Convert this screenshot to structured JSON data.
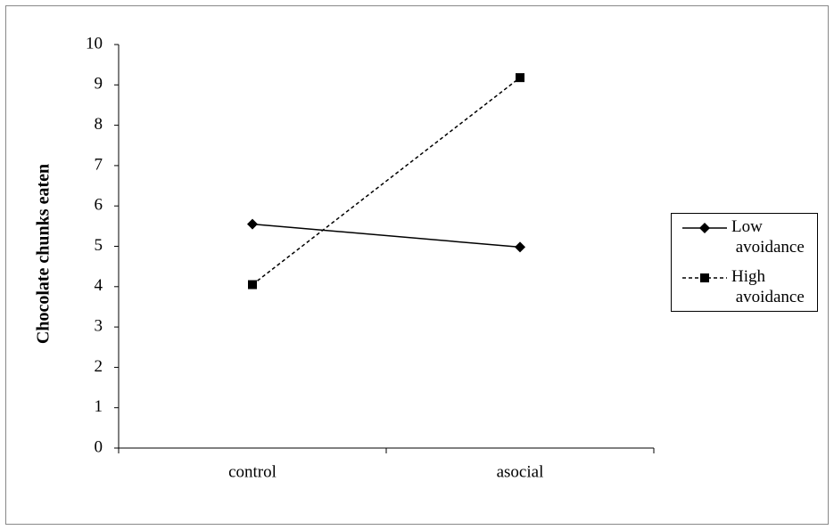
{
  "chart_data": {
    "type": "line",
    "ylabel": "Chocolate chunks  eaten",
    "categories": [
      "control",
      "asocial"
    ],
    "series": [
      {
        "name": "Low avoidance",
        "color": "#000000",
        "marker": "diamond",
        "dashed": false,
        "values": [
          5.55,
          4.98
        ]
      },
      {
        "name": "High avoidance",
        "color": "#000000",
        "marker": "square",
        "dashed": true,
        "values": [
          4.05,
          9.18
        ]
      }
    ],
    "ylim": [
      0,
      10
    ],
    "yticks": [
      0,
      1,
      2,
      3,
      4,
      5,
      6,
      7,
      8,
      9,
      10
    ],
    "grid": false,
    "legend": "right"
  }
}
